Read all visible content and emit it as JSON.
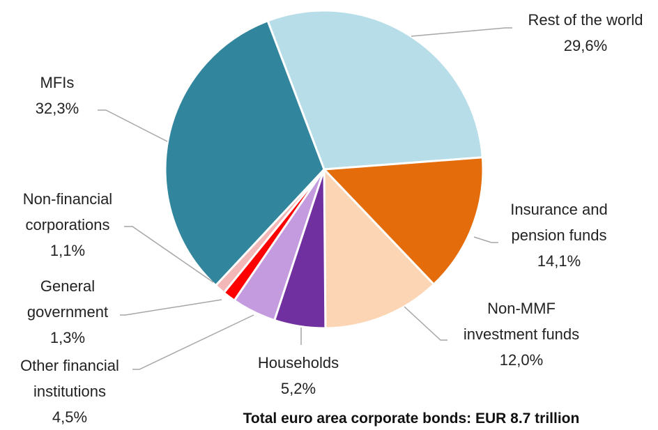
{
  "chart_data": {
    "type": "pie",
    "title": "Total euro area corporate bonds: EUR 8.7 trillion",
    "categories": [
      "Rest of the world",
      "Insurance and pension funds",
      "Non-MMF investment funds",
      "Households",
      "Other financial institutions",
      "General government",
      "Non-financial corporations",
      "MFIs"
    ],
    "values": [
      29.6,
      14.1,
      12.0,
      5.2,
      4.5,
      1.3,
      1.1,
      32.3
    ],
    "value_labels": [
      "29,6%",
      "14,1%",
      "12,0%",
      "5,2%",
      "4,5%",
      "1,3%",
      "1,1%",
      "32,3%"
    ],
    "colors": [
      "#b7dde8",
      "#e46c0a",
      "#fcd5b5",
      "#7030a0",
      "#c49bdf",
      "#ff0000",
      "#f4b7b7",
      "#31859c"
    ]
  }
}
